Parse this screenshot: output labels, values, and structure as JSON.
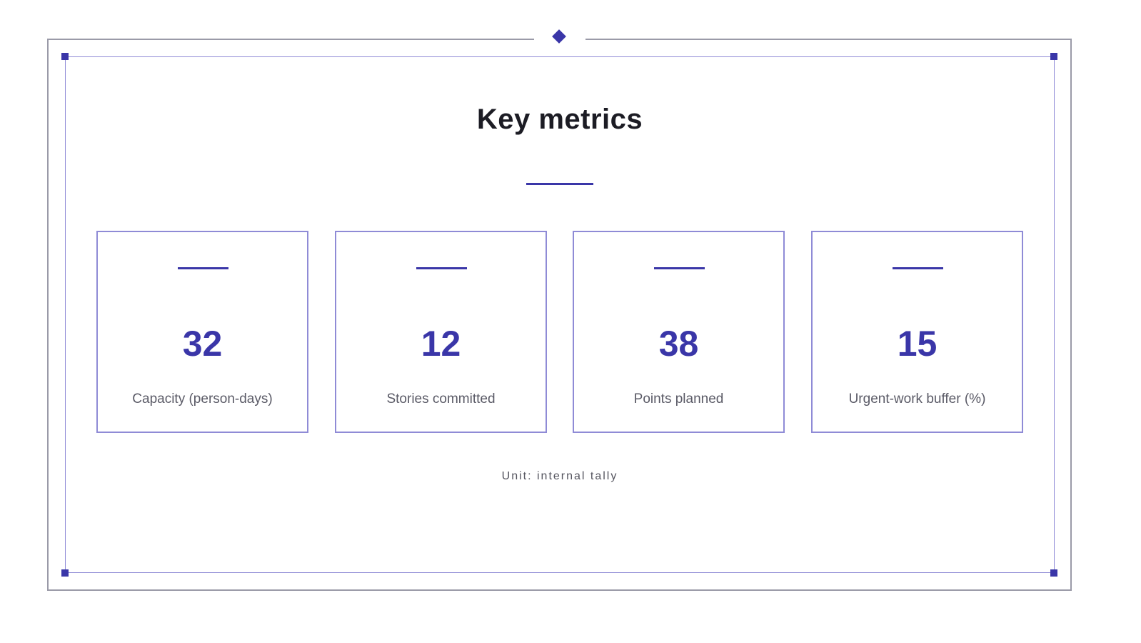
{
  "slide": {
    "title": "Key metrics",
    "unit_note": "Unit: internal tally"
  },
  "metrics": [
    {
      "value": "32",
      "label": "Capacity (person-days)"
    },
    {
      "value": "12",
      "label": "Stories committed"
    },
    {
      "value": "38",
      "label": "Points planned"
    },
    {
      "value": "15",
      "label": "Urgent-work buffer (%)"
    }
  ],
  "colors": {
    "accent": "#3a36a8",
    "frame": "#9a9aa8",
    "inner_frame": "#8f8bd6",
    "title": "#1c1c24",
    "label": "#5a5a66"
  }
}
